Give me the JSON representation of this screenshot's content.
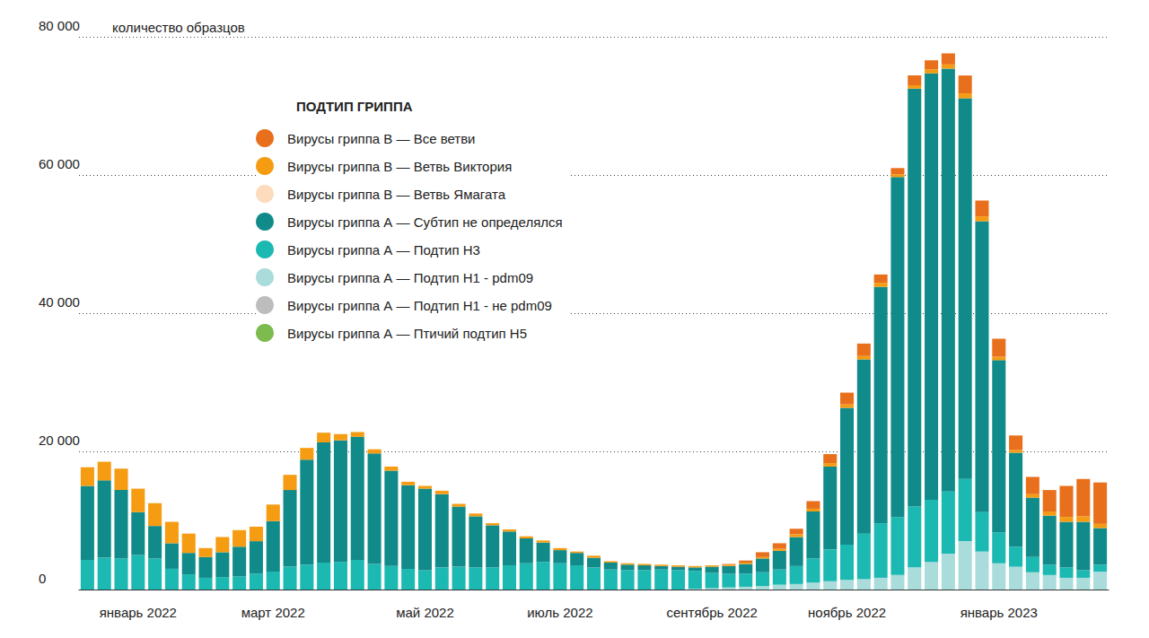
{
  "chart_data": {
    "type": "bar",
    "stacked": true,
    "grid": true,
    "legend": "top-left",
    "legend_title": "ПОДТИП ГРИППА",
    "y_label": "количество образцов",
    "ylim": [
      0,
      80000
    ],
    "yticks": [
      0,
      {
        "value": 20000,
        "label": "20 000"
      },
      {
        "value": 40000,
        "label": "40 000"
      },
      {
        "value": 60000,
        "label": "60 000"
      },
      {
        "value": 80000,
        "label": "80 000"
      }
    ],
    "categories": [
      null,
      null,
      null,
      "январь 2022",
      null,
      null,
      null,
      null,
      null,
      null,
      null,
      "март 2022",
      null,
      null,
      null,
      null,
      null,
      null,
      null,
      null,
      "май 2022",
      null,
      null,
      null,
      null,
      null,
      null,
      null,
      "июль 2022",
      null,
      null,
      null,
      null,
      null,
      null,
      null,
      null,
      "сентябрь 2022",
      null,
      null,
      null,
      null,
      null,
      null,
      null,
      "ноябрь 2022",
      null,
      null,
      null,
      null,
      null,
      null,
      null,
      null,
      "январь 2023",
      null,
      null,
      null,
      null,
      null,
      null
    ],
    "series": [
      {
        "name": "Вирусы гриппа В — Все ветви",
        "color": "#e8701c",
        "values": [
          0,
          0,
          0,
          0,
          0,
          0,
          0,
          0,
          0,
          0,
          0,
          0,
          0,
          0,
          0,
          0,
          0,
          0,
          0,
          0,
          0,
          0,
          0,
          0,
          0,
          0,
          0,
          0,
          0,
          0,
          0,
          0,
          0,
          0,
          0,
          0,
          0,
          0,
          100,
          300,
          700,
          800,
          800,
          1100,
          1300,
          1700,
          1800,
          1200,
          900,
          1400,
          1300,
          1600,
          2600,
          2300,
          2600,
          2100,
          2500,
          3100,
          4500,
          5400,
          6000
        ]
      },
      {
        "name": "Вирусы гриппа В — Ветвь Виктория",
        "color": "#f59c12",
        "values": [
          2700,
          2700,
          3100,
          3400,
          3300,
          3100,
          2800,
          1300,
          2200,
          2400,
          2100,
          2400,
          2200,
          1700,
          1400,
          900,
          700,
          600,
          600,
          500,
          400,
          500,
          400,
          400,
          300,
          300,
          300,
          300,
          300,
          200,
          300,
          200,
          200,
          200,
          200,
          200,
          200,
          200,
          200,
          200,
          200,
          300,
          400,
          400,
          500,
          500,
          500,
          600,
          400,
          500,
          600,
          600,
          700,
          700,
          500,
          400,
          500,
          600,
          700,
          800,
          600
        ]
      },
      {
        "name": "Вирусы гриппа В — Ветвь Ямагата",
        "color": "#fddcbd",
        "values": [
          0,
          0,
          0,
          0,
          0,
          0,
          0,
          0,
          0,
          0,
          0,
          0,
          0,
          0,
          0,
          0,
          0,
          0,
          0,
          0,
          0,
          0,
          0,
          0,
          0,
          0,
          0,
          0,
          0,
          0,
          0,
          0,
          0,
          0,
          0,
          0,
          0,
          0,
          0,
          0,
          0,
          0,
          0,
          0,
          0,
          0,
          0,
          0,
          0,
          0,
          0,
          0,
          0,
          0,
          0,
          0,
          0,
          0,
          0,
          0,
          0
        ]
      },
      {
        "name": "Вирусы гриппа А — Субтип не определялся",
        "color": "#118b8a",
        "values": [
          10700,
          11200,
          9900,
          6200,
          4700,
          3700,
          3100,
          3000,
          3600,
          4300,
          4700,
          7300,
          11100,
          15200,
          17400,
          17600,
          17800,
          16000,
          13800,
          12100,
          11800,
          10600,
          8700,
          7400,
          6100,
          4900,
          3600,
          2800,
          1900,
          1800,
          1400,
          1000,
          800,
          700,
          500,
          500,
          500,
          900,
          1100,
          1400,
          2000,
          2700,
          4200,
          6800,
          12000,
          19800,
          25200,
          34200,
          49200,
          60500,
          61700,
          61200,
          55100,
          42100,
          24900,
          13600,
          8600,
          7100,
          6600,
          7000,
          5300
        ]
      },
      {
        "name": "Вирусы гриппа А — Подтип Н3",
        "color": "#1cb8b2",
        "values": [
          4300,
          4600,
          4500,
          5000,
          4500,
          3000,
          2200,
          1700,
          1800,
          1900,
          2300,
          2600,
          3300,
          3600,
          3900,
          4000,
          4300,
          3700,
          3400,
          3000,
          2800,
          3200,
          3300,
          3200,
          3200,
          3500,
          3800,
          4000,
          3800,
          3500,
          3200,
          2900,
          2800,
          2800,
          2900,
          2800,
          2600,
          2200,
          2000,
          1900,
          2000,
          2200,
          2600,
          3500,
          4600,
          5100,
          6600,
          7900,
          8400,
          8800,
          9000,
          9000,
          9000,
          5700,
          4500,
          2900,
          2200,
          1500,
          1500,
          1100,
          1000
        ]
      },
      {
        "name": "Вирусы гриппа А — Подтип Н1 - pdm09",
        "color": "#a9dcdb",
        "values": [
          0,
          0,
          0,
          0,
          0,
          0,
          0,
          0,
          0,
          0,
          0,
          0,
          0,
          0,
          0,
          0,
          0,
          0,
          0,
          0,
          0,
          0,
          0,
          0,
          0,
          0,
          0,
          0,
          0,
          0,
          0,
          0,
          0,
          0,
          0,
          0,
          100,
          200,
          300,
          400,
          500,
          700,
          800,
          1000,
          1200,
          1400,
          1500,
          1700,
          2100,
          3200,
          4000,
          5200,
          7000,
          5500,
          3800,
          3300,
          2500,
          2100,
          1700,
          1700,
          2600
        ]
      },
      {
        "name": "Вирусы гриппа А — Подтип Н1 - не pdm09",
        "color": "#bdbdbd",
        "values": [
          0,
          0,
          0,
          0,
          0,
          0,
          0,
          0,
          0,
          0,
          0,
          0,
          0,
          0,
          0,
          0,
          0,
          0,
          0,
          0,
          0,
          0,
          0,
          0,
          0,
          0,
          0,
          0,
          0,
          0,
          0,
          0,
          0,
          0,
          0,
          0,
          0,
          0,
          0,
          0,
          0,
          0,
          0,
          0,
          0,
          0,
          0,
          0,
          0,
          0,
          0,
          0,
          0,
          0,
          0,
          0,
          0,
          0,
          0,
          0,
          0
        ]
      },
      {
        "name": "Вирусы гриппа А — Птичий подтип Н5",
        "color": "#7dbb4f",
        "values": [
          0,
          0,
          0,
          0,
          0,
          0,
          0,
          0,
          0,
          0,
          0,
          0,
          0,
          0,
          0,
          0,
          0,
          0,
          0,
          0,
          0,
          0,
          0,
          0,
          0,
          0,
          0,
          0,
          0,
          0,
          0,
          0,
          0,
          0,
          0,
          0,
          0,
          0,
          0,
          0,
          0,
          0,
          0,
          0,
          0,
          0,
          0,
          0,
          0,
          0,
          0,
          0,
          0,
          0,
          0,
          0,
          0,
          0,
          0,
          0,
          0
        ]
      }
    ]
  }
}
